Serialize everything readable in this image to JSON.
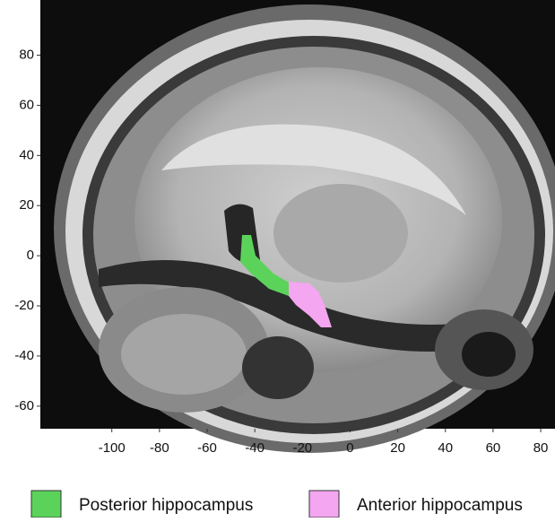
{
  "chart_data": {
    "type": "image",
    "xlim": [
      -130,
      86
    ],
    "ylim": [
      -69,
      102
    ],
    "xticks": [
      -100,
      -80,
      -60,
      -40,
      -20,
      0,
      20,
      40,
      60,
      80
    ],
    "yticks": [
      -60,
      -40,
      -20,
      0,
      20,
      40,
      60,
      80
    ],
    "series": [
      {
        "name": "Posterior hippocampus",
        "color": "#5bd35b"
      },
      {
        "name": "Anterior hippocampus",
        "color": "#f4a6f0"
      }
    ]
  }
}
